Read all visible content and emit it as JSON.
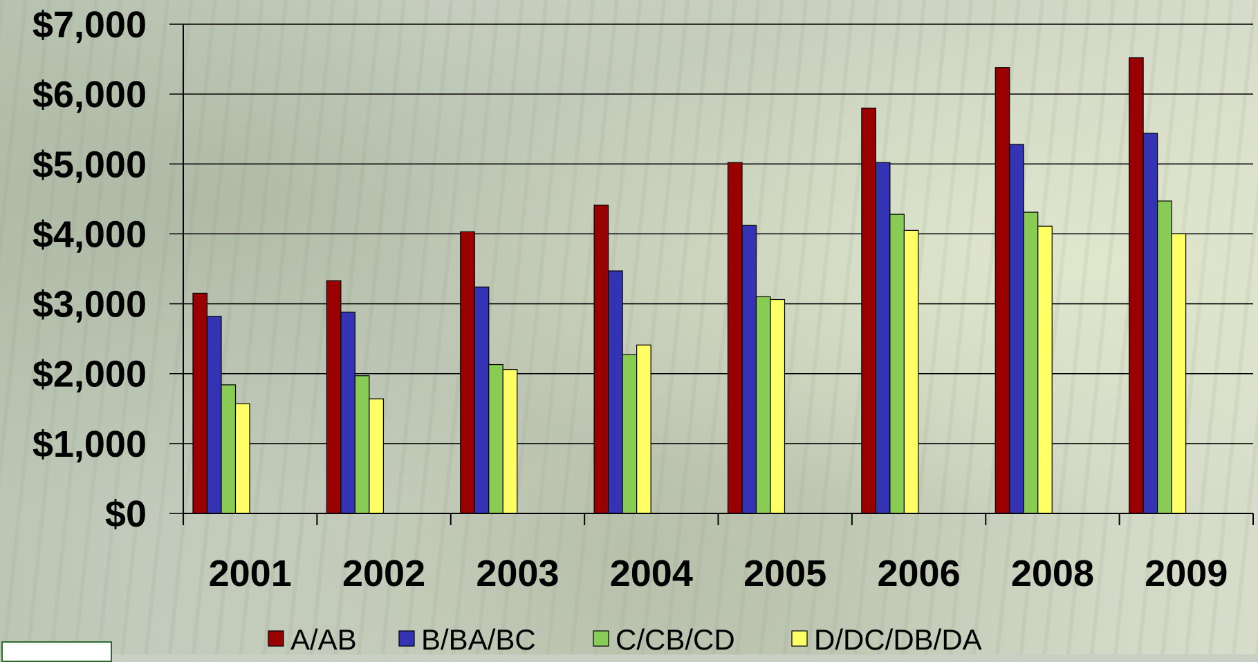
{
  "chart_data": {
    "type": "bar",
    "title": "",
    "xlabel": "",
    "ylabel": "",
    "categories": [
      "2001",
      "2002",
      "2003",
      "2004",
      "2005",
      "2006",
      "2008",
      "2009"
    ],
    "series": [
      {
        "name": "A/AB",
        "color": "#990000",
        "values": [
          3150,
          3330,
          4030,
          4410,
          5020,
          5800,
          6380,
          6520
        ]
      },
      {
        "name": "B/BA/BC",
        "color": "#3333b3",
        "values": [
          2820,
          2880,
          3240,
          3470,
          4120,
          5020,
          5280,
          5440
        ]
      },
      {
        "name": "C/CB/CD",
        "color": "#88cc55",
        "values": [
          1840,
          1970,
          2130,
          2270,
          3100,
          4280,
          4310,
          4470
        ]
      },
      {
        "name": "D/DC/DB/DA",
        "color": "#ffff66",
        "values": [
          1570,
          1640,
          2060,
          2410,
          3060,
          4050,
          4110,
          4000
        ]
      }
    ],
    "ylim": [
      0,
      7000
    ],
    "yticks": [
      "$0",
      "$1,000",
      "$2,000",
      "$3,000",
      "$4,000",
      "$5,000",
      "$6,000",
      "$7,000"
    ],
    "grid": true,
    "legend_position": "bottom"
  }
}
